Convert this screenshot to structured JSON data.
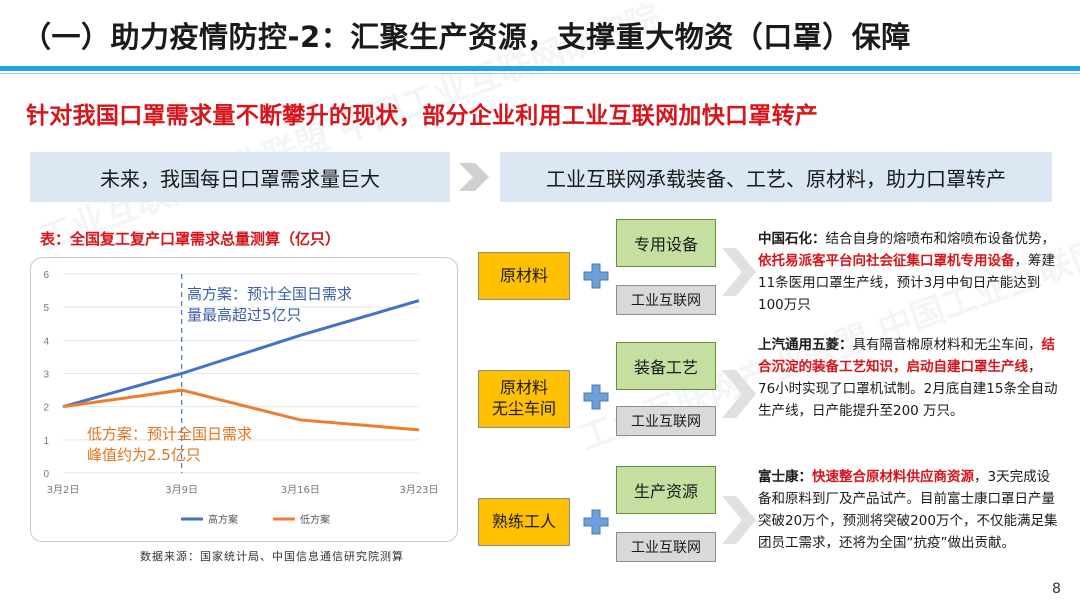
{
  "title": "（一）助力疫情防控-2：汇聚生产资源，支撑重大物资（口罩）保障",
  "headline": "针对我国口罩需求量不断攀升的现状，部分企业利用工业互联网加快口罩转产",
  "banner_left": "未来，我国每日口罩需求量巨大",
  "banner_right": "工业互联网承载装备、工艺、原材料，助力口罩转产",
  "table_title": "表：全国复工复产口罩需求总量测算（亿只）",
  "source": "数据来源：国家统计局、中国信息通信研究院测算",
  "page_number": "8",
  "watermark": "工业互联网产业联盟 中国工业互联网研究院",
  "colors": {
    "accent_blue": "#27a3d6",
    "red": "#d7141a",
    "high": "#4472c4",
    "low": "#ed7d31",
    "material": "#ffc000",
    "equipment": "#c5dfa0"
  },
  "chart_data": {
    "type": "line",
    "x": [
      "3月2日",
      "3月9日",
      "3月16日",
      "3月23日"
    ],
    "ylim": [
      0,
      6
    ],
    "yticks": [
      "0",
      "1",
      "2",
      "3",
      "4",
      "5",
      "6"
    ],
    "series": [
      {
        "name": "高方案",
        "values": [
          2.0,
          3.0,
          4.15,
          5.2
        ],
        "color": "#4472c4"
      },
      {
        "name": "低方案",
        "values": [
          2.0,
          2.5,
          1.6,
          1.3
        ],
        "color": "#ed7d31"
      }
    ],
    "annotations": {
      "high_line1": "高方案：预计全国日需求",
      "high_line2": "量最高超过5亿只",
      "low_line1": "低方案：预计全国日需求",
      "low_line2": "峰值约为2.5亿只"
    },
    "reference_x": "3月9日"
  },
  "rows": [
    {
      "material": "原材料",
      "equipment": "专用设备",
      "iiot": "工业互联网",
      "company": "中国石化：",
      "text1": "结合自身的熔喷布和熔喷布设备优势，",
      "highlight": "依托易派客平台向社会征集口罩机专用设备",
      "text2": "，筹建11条医用口罩生产线，预计3月中旬日产能达到100万只"
    },
    {
      "material_line1": "原材料",
      "material_line2": "无尘车间",
      "equipment": "装备工艺",
      "iiot": "工业互联网",
      "company": "上汽通用五菱：",
      "text1": "具有隔音棉原材料和无尘车间，",
      "highlight": "结合沉淀的装备工艺知识，启动自建口罩生产线",
      "text2": "，76小时实现了口罩机试制。2月底自建15条全自动生产线，日产能提升至200 万只。"
    },
    {
      "material": "熟练工人",
      "equipment": "生产资源",
      "iiot": "工业互联网",
      "company": "富士康：",
      "text1": "",
      "highlight": "快速整合原材料供应商资源",
      "text2": "，3天完成设备和原料到厂及产品试产。目前富士康口罩日产量突破20万个，预测将突破200万个，不仅能满足集团员工需求，还将为全国“抗疫”做出贡献。"
    }
  ]
}
